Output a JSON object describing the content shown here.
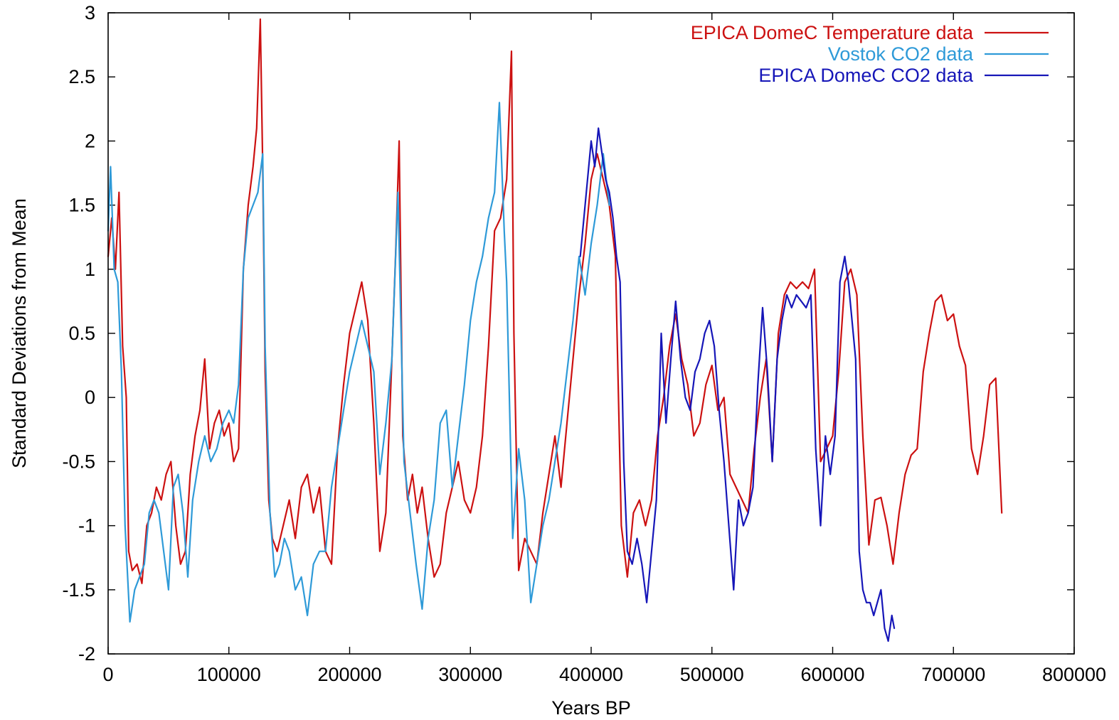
{
  "chart_data": {
    "type": "line",
    "title": "",
    "xlabel": "Years BP",
    "ylabel": "Standard Deviations from Mean",
    "xlim": [
      0,
      800000
    ],
    "ylim": [
      -2,
      3
    ],
    "x_ticks": [
      0,
      100000,
      200000,
      300000,
      400000,
      500000,
      600000,
      700000,
      800000
    ],
    "x_tick_labels": [
      "0",
      "100000",
      "200000",
      "300000",
      "400000",
      "500000",
      "600000",
      "700000",
      "800000"
    ],
    "y_ticks": [
      -2,
      -1.5,
      -1,
      -0.5,
      0,
      0.5,
      1,
      1.5,
      2,
      2.5,
      3
    ],
    "y_tick_labels": [
      "-2",
      "-1.5",
      "-1",
      "-0.5",
      "0",
      "0.5",
      "1",
      "1.5",
      "2",
      "2.5",
      "3"
    ],
    "grid": false,
    "legend_position": "top-right",
    "series": [
      {
        "name": "EPICA DomeC Temperature data",
        "color": "#cc1111",
        "x": [
          0,
          3000,
          6000,
          9000,
          12000,
          15000,
          17000,
          20000,
          24000,
          28000,
          32000,
          36000,
          40000,
          44000,
          48000,
          52000,
          56000,
          60000,
          64000,
          68000,
          72000,
          76000,
          80000,
          84000,
          88000,
          92000,
          96000,
          100000,
          104000,
          108000,
          112000,
          116000,
          120000,
          123000,
          126000,
          128000,
          130000,
          133000,
          136000,
          140000,
          145000,
          150000,
          155000,
          160000,
          165000,
          170000,
          175000,
          180000,
          185000,
          190000,
          195000,
          200000,
          205000,
          210000,
          215000,
          220000,
          225000,
          230000,
          235000,
          238000,
          241000,
          244000,
          248000,
          252000,
          256000,
          260000,
          265000,
          270000,
          275000,
          280000,
          285000,
          290000,
          295000,
          300000,
          305000,
          310000,
          315000,
          320000,
          325000,
          330000,
          334000,
          336000,
          340000,
          345000,
          350000,
          355000,
          360000,
          365000,
          370000,
          375000,
          380000,
          385000,
          390000,
          395000,
          400000,
          405000,
          410000,
          415000,
          420000,
          425000,
          430000,
          435000,
          440000,
          445000,
          450000,
          455000,
          460000,
          465000,
          470000,
          475000,
          480000,
          485000,
          490000,
          495000,
          500000,
          505000,
          510000,
          515000,
          520000,
          525000,
          530000,
          535000,
          540000,
          545000,
          550000,
          555000,
          560000,
          565000,
          570000,
          575000,
          580000,
          585000,
          590000,
          595000,
          600000,
          605000,
          610000,
          615000,
          620000,
          625000,
          630000,
          635000,
          640000,
          645000,
          650000,
          655000,
          660000,
          665000,
          670000,
          675000,
          680000,
          685000,
          690000,
          695000,
          700000,
          705000,
          710000,
          715000,
          720000,
          725000,
          730000,
          735000,
          740000
        ],
        "values": [
          1.1,
          1.4,
          1.0,
          1.6,
          0.4,
          0.0,
          -1.2,
          -1.35,
          -1.3,
          -1.45,
          -1.0,
          -0.9,
          -0.7,
          -0.8,
          -0.6,
          -0.5,
          -1.0,
          -1.3,
          -1.2,
          -0.6,
          -0.3,
          -0.1,
          0.3,
          -0.4,
          -0.2,
          -0.1,
          -0.3,
          -0.2,
          -0.5,
          -0.4,
          1.0,
          1.5,
          1.8,
          2.1,
          2.95,
          1.8,
          0.2,
          -0.8,
          -1.1,
          -1.2,
          -1.0,
          -0.8,
          -1.1,
          -0.7,
          -0.6,
          -0.9,
          -0.7,
          -1.2,
          -1.3,
          -0.4,
          0.1,
          0.5,
          0.7,
          0.9,
          0.6,
          -0.2,
          -1.2,
          -0.9,
          0.3,
          1.1,
          2.0,
          -0.3,
          -0.8,
          -0.6,
          -0.9,
          -0.7,
          -1.1,
          -1.4,
          -1.3,
          -0.9,
          -0.7,
          -0.5,
          -0.8,
          -0.9,
          -0.7,
          -0.3,
          0.4,
          1.3,
          1.4,
          1.7,
          2.7,
          0.5,
          -1.35,
          -1.1,
          -1.2,
          -1.3,
          -0.9,
          -0.6,
          -0.3,
          -0.7,
          -0.2,
          0.3,
          0.8,
          1.2,
          1.7,
          1.9,
          1.7,
          1.5,
          1.1,
          -1.0,
          -1.4,
          -0.9,
          -0.8,
          -1.0,
          -0.8,
          -0.3,
          0.0,
          0.4,
          0.65,
          0.3,
          0.1,
          -0.3,
          -0.2,
          0.1,
          0.25,
          -0.1,
          0.0,
          -0.6,
          -0.7,
          -0.8,
          -0.9,
          -0.4,
          0.0,
          0.3,
          -0.5,
          0.5,
          0.8,
          0.9,
          0.85,
          0.9,
          0.85,
          1.0,
          -0.5,
          -0.4,
          -0.3,
          0.2,
          0.9,
          1.0,
          0.8,
          -0.3,
          -1.15,
          -0.8,
          -0.78,
          -1.0,
          -1.3,
          -0.9,
          -0.6,
          -0.45,
          -0.4,
          0.2,
          0.5,
          0.75,
          0.8,
          0.6,
          0.65,
          0.4,
          0.25,
          -0.4,
          -0.6,
          -0.3,
          0.1,
          0.15,
          -0.9
        ]
      },
      {
        "name": "Vostok CO2 data",
        "color": "#2e9ad8",
        "x": [
          0,
          2000,
          5000,
          8000,
          11000,
          14000,
          18000,
          22000,
          26000,
          30000,
          34000,
          38000,
          42000,
          46000,
          50000,
          54000,
          58000,
          62000,
          66000,
          70000,
          75000,
          80000,
          85000,
          90000,
          95000,
          100000,
          104000,
          108000,
          112000,
          116000,
          120000,
          124000,
          128000,
          130000,
          134000,
          138000,
          142000,
          146000,
          150000,
          155000,
          160000,
          165000,
          170000,
          175000,
          180000,
          185000,
          190000,
          195000,
          200000,
          205000,
          210000,
          215000,
          220000,
          225000,
          230000,
          235000,
          240000,
          245000,
          250000,
          255000,
          260000,
          265000,
          270000,
          275000,
          280000,
          285000,
          290000,
          295000,
          300000,
          305000,
          310000,
          315000,
          320000,
          324000,
          328000,
          330000,
          335000,
          340000,
          345000,
          350000,
          355000,
          360000,
          365000,
          370000,
          375000,
          380000,
          385000,
          390000,
          395000,
          400000,
          405000,
          410000,
          415000
        ],
        "values": [
          1.3,
          1.8,
          1.0,
          0.9,
          0.2,
          -1.0,
          -1.75,
          -1.5,
          -1.4,
          -1.3,
          -0.9,
          -0.8,
          -0.9,
          -1.2,
          -1.5,
          -0.7,
          -0.6,
          -0.9,
          -1.4,
          -0.8,
          -0.5,
          -0.3,
          -0.5,
          -0.4,
          -0.2,
          -0.1,
          -0.2,
          0.1,
          1.0,
          1.4,
          1.5,
          1.6,
          1.9,
          0.4,
          -0.9,
          -1.4,
          -1.3,
          -1.1,
          -1.2,
          -1.5,
          -1.4,
          -1.7,
          -1.3,
          -1.2,
          -1.2,
          -0.7,
          -0.4,
          -0.1,
          0.2,
          0.4,
          0.6,
          0.4,
          0.2,
          -0.6,
          -0.2,
          0.3,
          1.6,
          -0.5,
          -0.9,
          -1.3,
          -1.65,
          -1.1,
          -0.8,
          -0.2,
          -0.1,
          -0.7,
          -0.3,
          0.1,
          0.6,
          0.9,
          1.1,
          1.4,
          1.6,
          2.3,
          1.3,
          0.9,
          -1.1,
          -0.4,
          -0.8,
          -1.6,
          -1.3,
          -1.0,
          -0.8,
          -0.5,
          -0.2,
          0.2,
          0.6,
          1.1,
          0.8,
          1.2,
          1.5,
          1.9,
          1.5
        ]
      },
      {
        "name": "EPICA DomeC CO2 data",
        "color": "#1616b8",
        "x": [
          391000,
          395000,
          400000,
          403000,
          406000,
          409000,
          412000,
          415000,
          418000,
          421000,
          424000,
          427000,
          430000,
          434000,
          438000,
          442000,
          446000,
          450000,
          454000,
          458000,
          462000,
          466000,
          470000,
          474000,
          478000,
          482000,
          486000,
          490000,
          494000,
          498000,
          502000,
          506000,
          510000,
          514000,
          518000,
          522000,
          526000,
          530000,
          534000,
          538000,
          542000,
          546000,
          550000,
          554000,
          558000,
          562000,
          566000,
          570000,
          574000,
          578000,
          582000,
          586000,
          590000,
          594000,
          598000,
          602000,
          606000,
          610000,
          613000,
          616000,
          619000,
          622000,
          625000,
          628000,
          631000,
          634000,
          637000,
          640000,
          643000,
          646000,
          649000,
          651000
        ],
        "values": [
          1.1,
          1.5,
          2.0,
          1.8,
          2.1,
          1.9,
          1.7,
          1.6,
          1.4,
          1.1,
          0.9,
          -0.5,
          -1.2,
          -1.3,
          -1.1,
          -1.3,
          -1.6,
          -1.2,
          -0.8,
          0.5,
          -0.2,
          0.3,
          0.75,
          0.3,
          0.0,
          -0.1,
          0.2,
          0.3,
          0.5,
          0.6,
          0.4,
          -0.1,
          -0.5,
          -1.0,
          -1.5,
          -0.8,
          -1.0,
          -0.9,
          -0.7,
          0.1,
          0.7,
          0.2,
          -0.5,
          0.3,
          0.6,
          0.8,
          0.7,
          0.8,
          0.75,
          0.7,
          0.8,
          -0.4,
          -1.0,
          -0.3,
          -0.6,
          -0.3,
          0.9,
          1.1,
          0.9,
          0.6,
          0.3,
          -1.2,
          -1.5,
          -1.6,
          -1.6,
          -1.7,
          -1.6,
          -1.5,
          -1.8,
          -1.9,
          -1.7,
          -1.8
        ]
      }
    ]
  }
}
